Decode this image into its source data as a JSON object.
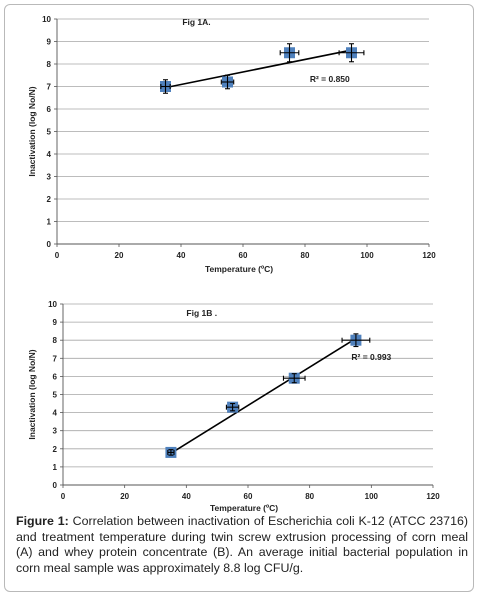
{
  "chart_data": [
    {
      "type": "scatter",
      "title": "Fig 1A.",
      "xlabel": "Temperature (ºC)",
      "ylabel": "Inactivation (log No/N)",
      "xlim": [
        0,
        120
      ],
      "ylim": [
        0,
        10
      ],
      "x_ticks": [
        0,
        20,
        40,
        60,
        80,
        100,
        120
      ],
      "y_ticks": [
        0,
        1,
        2,
        3,
        4,
        5,
        6,
        7,
        8,
        9,
        10
      ],
      "grid": true,
      "points": [
        {
          "x": 35,
          "y": 7.0,
          "xerr": 1.5,
          "yerr": 0.3
        },
        {
          "x": 55,
          "y": 7.2,
          "xerr": 2.0,
          "yerr": 0.3
        },
        {
          "x": 75,
          "y": 8.5,
          "xerr": 3.0,
          "yerr": 0.4
        },
        {
          "x": 95,
          "y": 8.5,
          "xerr": 4.0,
          "yerr": 0.4
        }
      ],
      "trendline": {
        "x": [
          35,
          95
        ],
        "y": [
          6.95,
          8.62
        ]
      },
      "annotation": "R² = 0.850",
      "annotation_pos": {
        "x": 88,
        "y": 7.2
      }
    },
    {
      "type": "scatter",
      "title": "Fig 1B .",
      "xlabel": "Temperature (ºC)",
      "ylabel": "Inactivation (log No/N)",
      "xlim": [
        0,
        120
      ],
      "ylim": [
        0,
        10
      ],
      "x_ticks": [
        0,
        20,
        40,
        60,
        80,
        100,
        120
      ],
      "y_ticks": [
        0,
        1,
        2,
        3,
        4,
        5,
        6,
        7,
        8,
        9,
        10
      ],
      "grid": true,
      "points": [
        {
          "x": 35,
          "y": 1.8,
          "xerr": 1.0,
          "yerr": 0.15
        },
        {
          "x": 55,
          "y": 4.3,
          "xerr": 2.0,
          "yerr": 0.2
        },
        {
          "x": 75,
          "y": 5.9,
          "xerr": 3.5,
          "yerr": 0.25
        },
        {
          "x": 95,
          "y": 8.0,
          "xerr": 4.5,
          "yerr": 0.35
        }
      ],
      "trendline": {
        "x": [
          35,
          95
        ],
        "y": [
          1.75,
          8.1
        ]
      },
      "annotation": "R² = 0.993",
      "annotation_pos": {
        "x": 100,
        "y": 6.9
      }
    }
  ],
  "caption": {
    "label": "Figure 1:",
    "text": " Correlation between inactivation of Escherichia coli K-12 (ATCC 23716) and treatment temperature during twin screw extrusion processing of corn meal (A) and whey protein concentrate (B). An average initial bacterial population in corn meal sample was approximately 8.8 log CFU/g."
  },
  "colors": {
    "marker": "#4f81bd",
    "line": "#000000",
    "grid": "#a6a6a6"
  }
}
